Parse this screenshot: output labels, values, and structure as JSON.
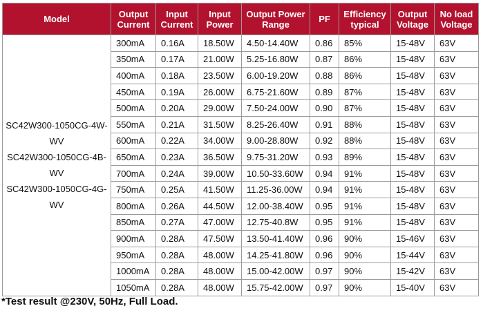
{
  "table": {
    "headers": [
      [
        "Model"
      ],
      [
        "Output",
        "Current"
      ],
      [
        "Input",
        "Current"
      ],
      [
        "Input",
        "Power"
      ],
      [
        "Output Power",
        "Range"
      ],
      [
        "PF"
      ],
      [
        "Efficiency",
        "typical"
      ],
      [
        "Output",
        "Voltage"
      ],
      [
        "No load",
        "Voltage"
      ]
    ],
    "models": [
      "SC42W300-1050CG-4W-",
      "WV",
      "SC42W300-1050CG-4B-",
      "WV",
      "SC42W300-1050CG-4G-",
      "WV"
    ],
    "rows": [
      [
        "300mA",
        "0.16A",
        "18.50W",
        "4.50-14.40W",
        "0.86",
        "85%",
        "15-48V",
        "63V"
      ],
      [
        "350mA",
        "0.17A",
        "21.00W",
        "5.25-16.80W",
        "0.87",
        "86%",
        "15-48V",
        "63V"
      ],
      [
        "400mA",
        "0.18A",
        "23.50W",
        "6.00-19.20W",
        "0.88",
        "86%",
        "15-48V",
        "63V"
      ],
      [
        "450mA",
        "0.19A",
        "26.00W",
        "6.75-21.60W",
        "0.89",
        "87%",
        "15-48V",
        "63V"
      ],
      [
        "500mA",
        "0.20A",
        "29.00W",
        "7.50-24.00W",
        "0.90",
        "87%",
        "15-48V",
        "63V"
      ],
      [
        "550mA",
        "0.21A",
        "31.50W",
        "8.25-26.40W",
        "0.91",
        "88%",
        "15-48V",
        "63V"
      ],
      [
        "600mA",
        "0.22A",
        "34.00W",
        "9.00-28.80W",
        "0.92",
        "88%",
        "15-48V",
        "63V"
      ],
      [
        "650mA",
        "0.23A",
        "36.50W",
        "9.75-31.20W",
        "0.93",
        "89%",
        "15-48V",
        "63V"
      ],
      [
        "700mA",
        "0.24A",
        "39.00W",
        "10.50-33.60W",
        "0.94",
        "91%",
        "15-48V",
        "63V"
      ],
      [
        "750mA",
        "0.25A",
        "41.50W",
        "11.25-36.00W",
        "0.94",
        "91%",
        "15-48V",
        "63V"
      ],
      [
        "800mA",
        "0.26A",
        "44.50W",
        "12.00-38.40W",
        "0.95",
        "91%",
        "15-48V",
        "63V"
      ],
      [
        "850mA",
        "0.27A",
        "47.00W",
        "12.75-40.8W",
        "0.95",
        "91%",
        "15-48V",
        "63V"
      ],
      [
        "900mA",
        "0.28A",
        "47.50W",
        "13.50-41.40W",
        "0.96",
        "90%",
        "15-46V",
        "63V"
      ],
      [
        "950mA",
        "0.28A",
        "48.00W",
        "14.25-41.80W",
        "0.96",
        "90%",
        "15-44V",
        "63V"
      ],
      [
        "1000mA",
        "0.28A",
        "48.00W",
        "15.00-42.00W",
        "0.97",
        "90%",
        "15-42V",
        "63V"
      ],
      [
        "1050mA",
        "0.28A",
        "48.00W",
        "15.75-42.00W",
        "0.97",
        "90%",
        "15-40V",
        "63V"
      ]
    ]
  },
  "footnote": "*Test result @230V, 50Hz, Full Load.",
  "colors": {
    "header_bg": "#b3122e",
    "header_text": "#ffffff",
    "border": "#9a9a9a"
  }
}
